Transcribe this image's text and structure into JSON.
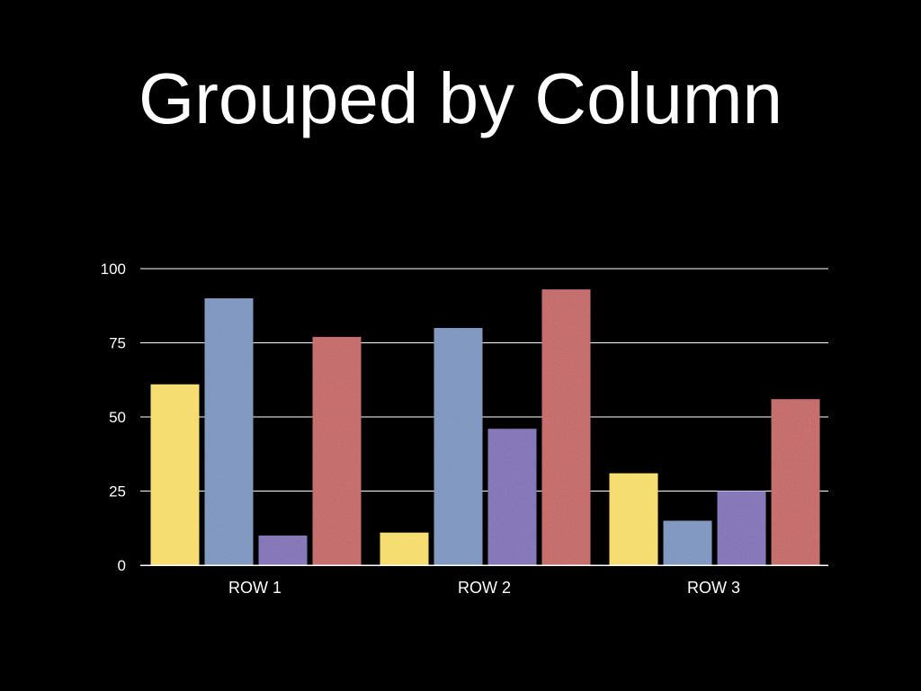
{
  "slide": {
    "title": "Grouped by Column"
  },
  "chart_data": {
    "type": "bar",
    "title": "",
    "xlabel": "",
    "ylabel": "",
    "categories": [
      "ROW 1",
      "ROW 2",
      "ROW 3"
    ],
    "series": [
      {
        "color": "#f5db63",
        "values": [
          61,
          11,
          31
        ]
      },
      {
        "color": "#7791bd",
        "values": [
          90,
          80,
          15
        ]
      },
      {
        "color": "#7d6cb4",
        "values": [
          10,
          46,
          25
        ]
      },
      {
        "color": "#c2615e",
        "values": [
          77,
          93,
          56
        ]
      }
    ],
    "ylim": [
      0,
      100
    ],
    "yticks": [
      0,
      25,
      50,
      75,
      100
    ],
    "grid": true,
    "legend": "none"
  }
}
